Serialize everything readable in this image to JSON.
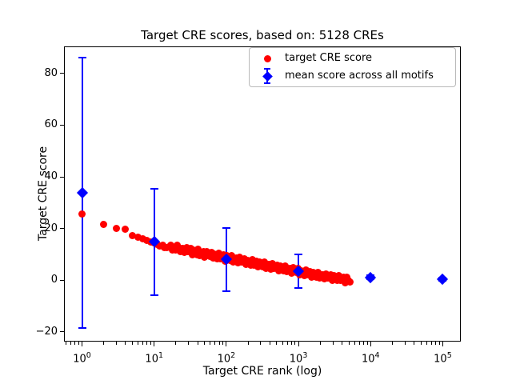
{
  "chart_data": {
    "type": "scatter",
    "title": "Target CRE scores, based on: 5128 CREs",
    "xlabel": "Target CRE rank (log)",
    "ylabel": "Target CRE score",
    "x_scale": "log",
    "grid": false,
    "xlim_log10": [
      -0.25,
      5.25
    ],
    "ylim": [
      -23.8,
      90.6
    ],
    "x_tick_exponents": [
      0,
      1,
      2,
      3,
      4,
      5
    ],
    "y_ticks": [
      {
        "value": -20,
        "label": "−20"
      },
      {
        "value": 0,
        "label": "0"
      },
      {
        "value": 20,
        "label": "20"
      },
      {
        "value": 40,
        "label": "40"
      },
      {
        "value": 60,
        "label": "60"
      },
      {
        "value": 80,
        "label": "80"
      }
    ],
    "legend_position": "upper right",
    "legend": [
      {
        "label": "target CRE score",
        "marker": "circle",
        "color": "#ff0000"
      },
      {
        "label": "mean score across all motifs",
        "marker": "diamond-errorbar",
        "color": "#0000ff"
      }
    ],
    "series": [
      {
        "name": "target CRE score",
        "marker": "circle",
        "color": "#ff0000",
        "total_points": 5128,
        "curve_knots_rank_score": [
          [
            1,
            25.5
          ],
          [
            2,
            21.5
          ],
          [
            3,
            20.2
          ],
          [
            4,
            19.8
          ],
          [
            5,
            17.4
          ],
          [
            6,
            16.6
          ],
          [
            8,
            15.3
          ],
          [
            10,
            14.2
          ],
          [
            15,
            13.1
          ],
          [
            25,
            11.9
          ],
          [
            50,
            10.2
          ],
          [
            100,
            8.6
          ],
          [
            250,
            6.6
          ],
          [
            500,
            5.0
          ],
          [
            1000,
            3.3
          ],
          [
            2000,
            1.8
          ],
          [
            3500,
            0.8
          ],
          [
            5128,
            0.0
          ]
        ]
      },
      {
        "name": "mean score across all motifs",
        "marker": "diamond",
        "color": "#0000ff",
        "points": [
          {
            "rank": 1,
            "mean": 33.8,
            "err": 52.2
          },
          {
            "rank": 10,
            "mean": 14.9,
            "err": 20.6
          },
          {
            "rank": 100,
            "mean": 8.1,
            "err": 12.2
          },
          {
            "rank": 1000,
            "mean": 3.4,
            "err": 6.5
          },
          {
            "rank": 10000,
            "mean": 1.1,
            "err": 0.7
          },
          {
            "rank": 100000,
            "mean": 0.4,
            "err": 0.5
          }
        ]
      }
    ]
  }
}
